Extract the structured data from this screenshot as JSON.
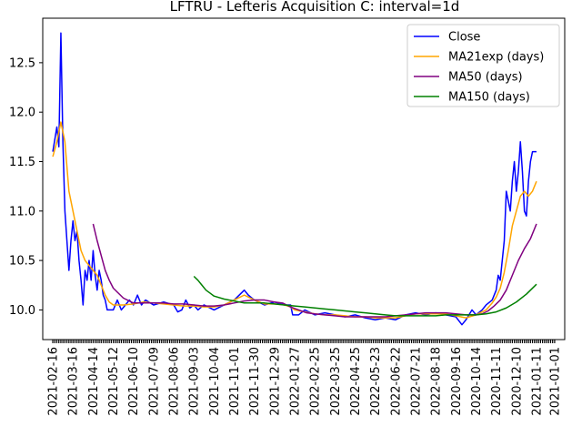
{
  "chart_data": {
    "type": "line",
    "title": "LFTRU - Lefteris Acquisition C: interval=1d",
    "xlabel": "",
    "ylabel": "",
    "ylim": [
      9.7,
      12.95
    ],
    "yticks": [
      10.0,
      10.5,
      11.0,
      11.5,
      12.0,
      12.5
    ],
    "ytick_labels": [
      "10.0",
      "10.5",
      "11.0",
      "11.5",
      "12.0",
      "12.5"
    ],
    "n_points": 250,
    "xlim": [
      -5,
      254
    ],
    "xtick_positions": [
      0,
      10,
      20,
      30,
      40,
      50,
      60,
      70,
      80,
      90,
      100,
      110,
      120,
      130,
      140,
      150,
      160,
      170,
      180,
      190,
      200,
      210,
      220,
      230,
      240,
      249
    ],
    "xtick_labels": [
      "2021-02-16",
      "2021-03-16",
      "2021-04-14",
      "2021-05-12",
      "2021-06-10",
      "2021-07-09",
      "2021-08-06",
      "2021-09-03",
      "2021-10-04",
      "2021-11-01",
      "2021-11-30",
      "2021-12-29",
      "2022-01-27",
      "2022-02-25",
      "2022-03-25",
      "2022-04-25",
      "2022-05-23",
      "2022-06-22",
      "2022-07-21",
      "2022-08-18",
      "2020-09-16",
      "2020-10-14",
      "2020-11-11",
      "2020-12-10",
      "2021-01-11",
      "2021-01-01"
    ],
    "grid": false,
    "legend_position": "top-right",
    "series": [
      {
        "name": "Close",
        "color": "#0000ff",
        "points": [
          [
            0,
            11.6
          ],
          [
            2,
            11.85
          ],
          [
            3,
            11.65
          ],
          [
            4,
            12.8
          ],
          [
            5,
            11.7
          ],
          [
            6,
            11.0
          ],
          [
            7,
            10.7
          ],
          [
            8,
            10.4
          ],
          [
            9,
            10.7
          ],
          [
            10,
            10.9
          ],
          [
            11,
            10.7
          ],
          [
            12,
            10.8
          ],
          [
            13,
            10.5
          ],
          [
            14,
            10.3
          ],
          [
            15,
            10.05
          ],
          [
            16,
            10.4
          ],
          [
            17,
            10.3
          ],
          [
            18,
            10.5
          ],
          [
            19,
            10.3
          ],
          [
            20,
            10.6
          ],
          [
            21,
            10.35
          ],
          [
            22,
            10.2
          ],
          [
            23,
            10.4
          ],
          [
            24,
            10.3
          ],
          [
            25,
            10.15
          ],
          [
            26,
            10.1
          ],
          [
            27,
            10.0
          ],
          [
            30,
            10.0
          ],
          [
            32,
            10.1
          ],
          [
            34,
            10.0
          ],
          [
            36,
            10.05
          ],
          [
            38,
            10.1
          ],
          [
            40,
            10.05
          ],
          [
            42,
            10.15
          ],
          [
            44,
            10.05
          ],
          [
            46,
            10.1
          ],
          [
            50,
            10.05
          ],
          [
            55,
            10.08
          ],
          [
            60,
            10.05
          ],
          [
            62,
            9.98
          ],
          [
            64,
            10.0
          ],
          [
            66,
            10.1
          ],
          [
            68,
            10.02
          ],
          [
            70,
            10.05
          ],
          [
            72,
            10.0
          ],
          [
            75,
            10.05
          ],
          [
            80,
            10.0
          ],
          [
            85,
            10.05
          ],
          [
            90,
            10.1
          ],
          [
            95,
            10.2
          ],
          [
            97,
            10.15
          ],
          [
            100,
            10.1
          ],
          [
            105,
            10.05
          ],
          [
            110,
            10.08
          ],
          [
            115,
            10.05
          ],
          [
            118,
            10.05
          ],
          [
            119,
            9.95
          ],
          [
            122,
            9.95
          ],
          [
            125,
            10.0
          ],
          [
            130,
            9.95
          ],
          [
            135,
            9.97
          ],
          [
            140,
            9.95
          ],
          [
            145,
            9.93
          ],
          [
            150,
            9.95
          ],
          [
            155,
            9.92
          ],
          [
            160,
            9.9
          ],
          [
            165,
            9.92
          ],
          [
            170,
            9.9
          ],
          [
            175,
            9.95
          ],
          [
            180,
            9.97
          ],
          [
            185,
            9.95
          ],
          [
            190,
            9.97
          ],
          [
            195,
            9.95
          ],
          [
            200,
            9.93
          ],
          [
            203,
            9.85
          ],
          [
            205,
            9.9
          ],
          [
            208,
            10.0
          ],
          [
            210,
            9.95
          ],
          [
            213,
            10.0
          ],
          [
            215,
            10.05
          ],
          [
            218,
            10.1
          ],
          [
            220,
            10.2
          ],
          [
            221,
            10.35
          ],
          [
            222,
            10.3
          ],
          [
            224,
            10.7
          ],
          [
            225,
            11.2
          ],
          [
            226,
            11.1
          ],
          [
            227,
            11.0
          ],
          [
            228,
            11.3
          ],
          [
            229,
            11.5
          ],
          [
            230,
            11.2
          ],
          [
            231,
            11.4
          ],
          [
            232,
            11.7
          ],
          [
            233,
            11.4
          ],
          [
            234,
            11.0
          ],
          [
            235,
            10.95
          ],
          [
            236,
            11.3
          ],
          [
            237,
            11.5
          ],
          [
            238,
            11.6
          ],
          [
            239,
            11.6
          ],
          [
            240,
            11.6
          ]
        ]
      },
      {
        "name": "MA21exp (days)",
        "color": "#ffa500",
        "points": [
          [
            0,
            11.55
          ],
          [
            2,
            11.7
          ],
          [
            4,
            11.9
          ],
          [
            6,
            11.7
          ],
          [
            8,
            11.2
          ],
          [
            10,
            11.0
          ],
          [
            12,
            10.8
          ],
          [
            14,
            10.6
          ],
          [
            16,
            10.5
          ],
          [
            18,
            10.45
          ],
          [
            20,
            10.4
          ],
          [
            22,
            10.35
          ],
          [
            24,
            10.25
          ],
          [
            26,
            10.15
          ],
          [
            28,
            10.08
          ],
          [
            30,
            10.05
          ],
          [
            35,
            10.05
          ],
          [
            40,
            10.06
          ],
          [
            45,
            10.08
          ],
          [
            50,
            10.07
          ],
          [
            55,
            10.06
          ],
          [
            60,
            10.05
          ],
          [
            65,
            10.04
          ],
          [
            70,
            10.04
          ],
          [
            75,
            10.03
          ],
          [
            80,
            10.03
          ],
          [
            85,
            10.05
          ],
          [
            90,
            10.1
          ],
          [
            95,
            10.15
          ],
          [
            100,
            10.1
          ],
          [
            105,
            10.06
          ],
          [
            110,
            10.06
          ],
          [
            115,
            10.05
          ],
          [
            118,
            10.03
          ],
          [
            120,
            10.0
          ],
          [
            125,
            9.98
          ],
          [
            130,
            9.96
          ],
          [
            135,
            9.95
          ],
          [
            140,
            9.95
          ],
          [
            145,
            9.94
          ],
          [
            150,
            9.93
          ],
          [
            155,
            9.93
          ],
          [
            160,
            9.92
          ],
          [
            165,
            9.92
          ],
          [
            170,
            9.92
          ],
          [
            175,
            9.94
          ],
          [
            180,
            9.96
          ],
          [
            185,
            9.96
          ],
          [
            190,
            9.96
          ],
          [
            195,
            9.96
          ],
          [
            200,
            9.94
          ],
          [
            205,
            9.92
          ],
          [
            210,
            9.95
          ],
          [
            213,
            9.98
          ],
          [
            215,
            10.0
          ],
          [
            218,
            10.07
          ],
          [
            220,
            10.13
          ],
          [
            222,
            10.22
          ],
          [
            224,
            10.38
          ],
          [
            226,
            10.6
          ],
          [
            228,
            10.85
          ],
          [
            230,
            11.0
          ],
          [
            232,
            11.15
          ],
          [
            234,
            11.2
          ],
          [
            236,
            11.15
          ],
          [
            238,
            11.2
          ],
          [
            240,
            11.3
          ]
        ]
      },
      {
        "name": "MA50 (days)",
        "color": "#800080",
        "points": [
          [
            20,
            10.87
          ],
          [
            22,
            10.7
          ],
          [
            24,
            10.55
          ],
          [
            26,
            10.4
          ],
          [
            28,
            10.3
          ],
          [
            30,
            10.22
          ],
          [
            32,
            10.18
          ],
          [
            35,
            10.12
          ],
          [
            38,
            10.09
          ],
          [
            40,
            10.07
          ],
          [
            45,
            10.07
          ],
          [
            50,
            10.07
          ],
          [
            55,
            10.07
          ],
          [
            60,
            10.06
          ],
          [
            65,
            10.06
          ],
          [
            70,
            10.05
          ],
          [
            75,
            10.04
          ],
          [
            80,
            10.04
          ],
          [
            85,
            10.05
          ],
          [
            90,
            10.07
          ],
          [
            95,
            10.09
          ],
          [
            100,
            10.1
          ],
          [
            105,
            10.1
          ],
          [
            110,
            10.08
          ],
          [
            114,
            10.07
          ],
          [
            118,
            10.03
          ],
          [
            122,
            10.0
          ],
          [
            126,
            9.97
          ],
          [
            130,
            9.96
          ],
          [
            135,
            9.95
          ],
          [
            140,
            9.94
          ],
          [
            145,
            9.93
          ],
          [
            150,
            9.93
          ],
          [
            155,
            9.93
          ],
          [
            160,
            9.93
          ],
          [
            165,
            9.93
          ],
          [
            170,
            9.94
          ],
          [
            175,
            9.95
          ],
          [
            180,
            9.96
          ],
          [
            185,
            9.97
          ],
          [
            190,
            9.97
          ],
          [
            195,
            9.97
          ],
          [
            200,
            9.96
          ],
          [
            205,
            9.95
          ],
          [
            210,
            9.95
          ],
          [
            213,
            9.96
          ],
          [
            216,
            9.99
          ],
          [
            219,
            10.04
          ],
          [
            222,
            10.1
          ],
          [
            225,
            10.2
          ],
          [
            228,
            10.35
          ],
          [
            231,
            10.5
          ],
          [
            234,
            10.62
          ],
          [
            237,
            10.72
          ],
          [
            240,
            10.87
          ]
        ]
      },
      {
        "name": "MA150 (days)",
        "color": "#008000",
        "points": [
          [
            70,
            10.34
          ],
          [
            72,
            10.3
          ],
          [
            74,
            10.25
          ],
          [
            76,
            10.2
          ],
          [
            78,
            10.17
          ],
          [
            80,
            10.14
          ],
          [
            85,
            10.11
          ],
          [
            90,
            10.09
          ],
          [
            95,
            10.07
          ],
          [
            100,
            10.07
          ],
          [
            105,
            10.07
          ],
          [
            110,
            10.06
          ],
          [
            115,
            10.05
          ],
          [
            120,
            10.04
          ],
          [
            125,
            10.03
          ],
          [
            130,
            10.02
          ],
          [
            135,
            10.01
          ],
          [
            140,
            10.0
          ],
          [
            145,
            9.99
          ],
          [
            150,
            9.98
          ],
          [
            155,
            9.97
          ],
          [
            160,
            9.96
          ],
          [
            165,
            9.95
          ],
          [
            170,
            9.94
          ],
          [
            175,
            9.94
          ],
          [
            180,
            9.94
          ],
          [
            185,
            9.94
          ],
          [
            190,
            9.94
          ],
          [
            195,
            9.95
          ],
          [
            200,
            9.95
          ],
          [
            205,
            9.95
          ],
          [
            210,
            9.95
          ],
          [
            215,
            9.96
          ],
          [
            220,
            9.98
          ],
          [
            225,
            10.02
          ],
          [
            230,
            10.08
          ],
          [
            235,
            10.16
          ],
          [
            240,
            10.26
          ]
        ]
      }
    ]
  }
}
